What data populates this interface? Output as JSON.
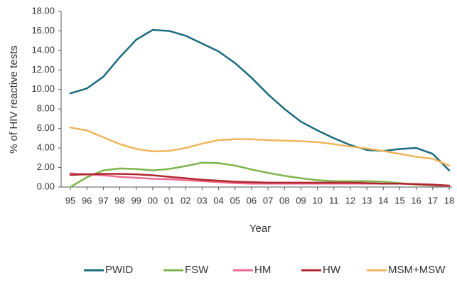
{
  "chart_data": {
    "type": "line",
    "y_label": "% of HIV reactive tests",
    "x_label": "Year",
    "categories": [
      "95",
      "96",
      "97",
      "98",
      "99",
      "00",
      "01",
      "02",
      "03",
      "04",
      "05",
      "06",
      "07",
      "08",
      "09",
      "10",
      "11",
      "12",
      "13",
      "14",
      "15",
      "16",
      "17",
      "18"
    ],
    "series": [
      {
        "name": "PWID",
        "color": "#1a6b7e",
        "values": [
          9.6,
          10.1,
          11.3,
          13.3,
          15.1,
          16.1,
          16.0,
          15.5,
          14.7,
          13.9,
          12.7,
          11.2,
          9.5,
          8.0,
          6.7,
          5.8,
          5.0,
          4.3,
          3.8,
          3.7,
          3.9,
          4.0,
          3.4,
          1.7
        ]
      },
      {
        "name": "FSW",
        "color": "#7cb54c",
        "values": [
          0.0,
          1.0,
          1.7,
          1.9,
          1.85,
          1.7,
          1.85,
          2.15,
          2.5,
          2.45,
          2.2,
          1.8,
          1.45,
          1.15,
          0.9,
          0.7,
          0.6,
          0.6,
          0.6,
          0.55,
          0.4,
          0.25,
          0.15,
          0.1
        ]
      },
      {
        "name": "HM",
        "color": "#ee6b8f",
        "values": [
          1.4,
          1.3,
          1.2,
          1.05,
          0.95,
          0.85,
          0.8,
          0.7,
          0.6,
          0.5,
          0.4,
          0.35,
          0.35,
          0.35,
          0.35,
          0.35,
          0.35,
          0.35,
          0.35,
          0.35,
          0.35,
          0.3,
          0.2,
          0.1
        ]
      },
      {
        "name": "HW",
        "color": "#b0262e",
        "values": [
          1.25,
          1.3,
          1.35,
          1.35,
          1.3,
          1.2,
          1.05,
          0.9,
          0.75,
          0.65,
          0.55,
          0.5,
          0.45,
          0.45,
          0.45,
          0.45,
          0.45,
          0.45,
          0.4,
          0.35,
          0.35,
          0.3,
          0.25,
          0.15
        ]
      },
      {
        "name": "MSM+MSW",
        "color": "#f0b55c",
        "values": [
          6.1,
          5.8,
          5.1,
          4.4,
          3.9,
          3.65,
          3.7,
          4.0,
          4.45,
          4.8,
          4.9,
          4.9,
          4.8,
          4.75,
          4.7,
          4.6,
          4.4,
          4.15,
          3.95,
          3.7,
          3.4,
          3.1,
          2.9,
          2.2
        ]
      }
    ],
    "ylim": [
      0,
      18
    ],
    "yticks": [
      {
        "value": 0,
        "label": "0.00"
      },
      {
        "value": 2,
        "label": "2.00"
      },
      {
        "value": 4,
        "label": "4.00"
      },
      {
        "value": 6,
        "label": "6.00"
      },
      {
        "value": 8,
        "label": "8.00"
      },
      {
        "value": 10,
        "label": "10.00"
      },
      {
        "value": 12,
        "label": "12.00"
      },
      {
        "value": 14,
        "label": "14.00"
      },
      {
        "value": 16,
        "label": "16.00"
      },
      {
        "value": 18,
        "label": "18.00"
      }
    ]
  }
}
